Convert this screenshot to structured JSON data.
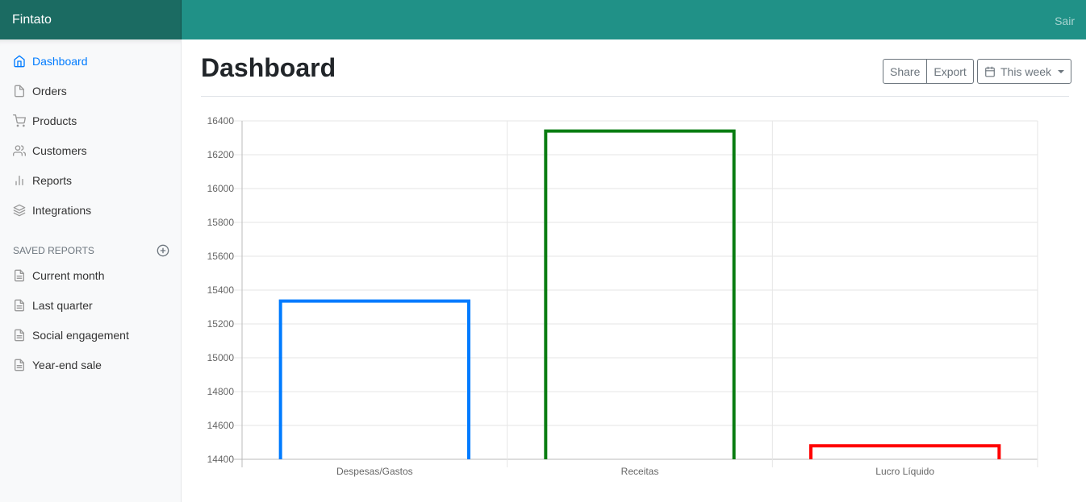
{
  "navbar": {
    "brand": "Fintato",
    "signout": "Sair"
  },
  "sidebar": {
    "items": [
      {
        "label": "Dashboard",
        "icon": "home-icon",
        "active": true
      },
      {
        "label": "Orders",
        "icon": "file-icon"
      },
      {
        "label": "Products",
        "icon": "cart-icon"
      },
      {
        "label": "Customers",
        "icon": "users-icon"
      },
      {
        "label": "Reports",
        "icon": "bar-chart-icon"
      },
      {
        "label": "Integrations",
        "icon": "layers-icon"
      }
    ],
    "saved_title": "Saved reports",
    "saved": [
      {
        "label": "Current month",
        "icon": "file-text-icon"
      },
      {
        "label": "Last quarter",
        "icon": "file-text-icon"
      },
      {
        "label": "Social engagement",
        "icon": "file-text-icon"
      },
      {
        "label": "Year-end sale",
        "icon": "file-text-icon"
      }
    ]
  },
  "main": {
    "title": "Dashboard",
    "toolbar": {
      "share": "Share",
      "export": "Export",
      "period": "This week"
    }
  },
  "chart_data": {
    "type": "bar",
    "categories": [
      "Despesas/Gastos",
      "Receitas",
      "Lucro Líquido"
    ],
    "values": [
      15335,
      16340,
      14480
    ],
    "colors": [
      "#007bff",
      "#0a7d12",
      "#ff0000"
    ],
    "ylim": [
      14400,
      16400
    ],
    "yticks": [
      "16400",
      "16200",
      "16000",
      "15800",
      "15600",
      "15400",
      "15200",
      "15000",
      "14800",
      "14600",
      "14400"
    ],
    "grid": true,
    "legend": "none"
  }
}
